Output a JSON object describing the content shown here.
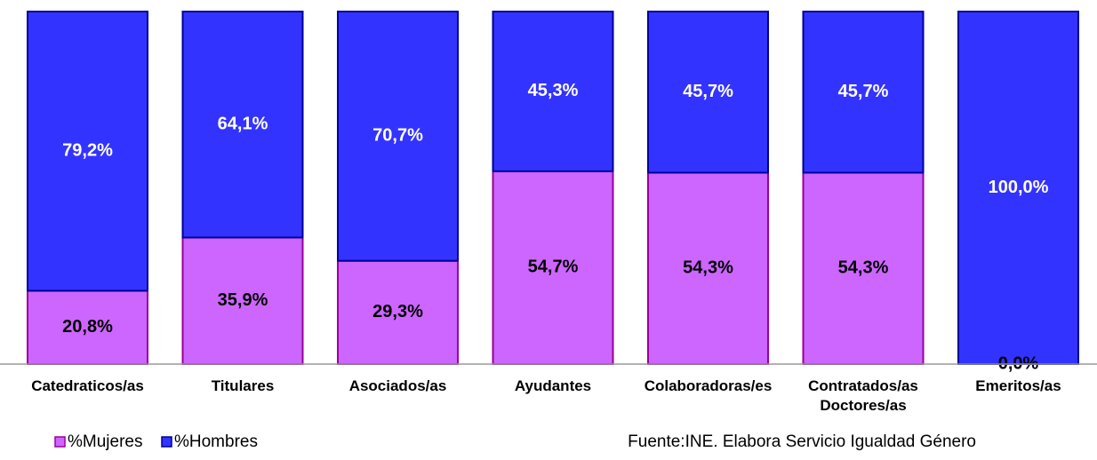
{
  "chart_data": {
    "type": "stacked_bar",
    "categories": [
      "Catedraticos/as",
      "Titulares",
      "Asociados/as",
      "Ayudantes",
      "Colaboradoras/es",
      "Contratados/as Doctores/as",
      "Emeritos/as"
    ],
    "series": [
      {
        "name": "%Mujeres",
        "color": "#cc66ff",
        "values": [
          20.8,
          35.9,
          29.3,
          54.7,
          54.3,
          54.3,
          0.0
        ],
        "value_labels": [
          "20,8%",
          "35,9%",
          "29,3%",
          "54,7%",
          "54,3%",
          "54,3%",
          "0,0%"
        ]
      },
      {
        "name": "%Hombres",
        "color": "#3333ff",
        "values": [
          79.2,
          64.1,
          70.7,
          45.3,
          45.7,
          45.7,
          100.0
        ],
        "value_labels": [
          "79,2%",
          "64,1%",
          "70,7%",
          "45,3%",
          "45,7%",
          "45,7%",
          "100,0%"
        ]
      }
    ],
    "ylim": [
      0,
      100
    ],
    "source": "Fuente:INE. Elabora Servicio Igualdad Género"
  }
}
